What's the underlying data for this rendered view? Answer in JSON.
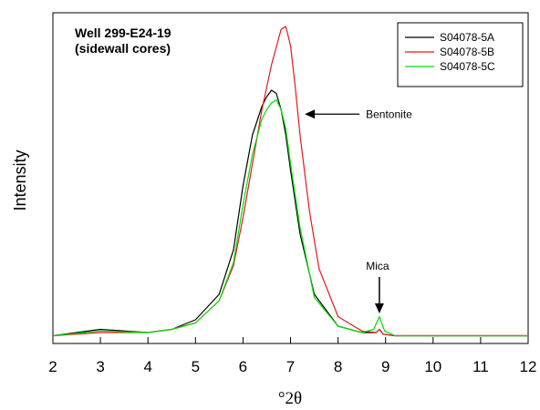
{
  "chart_data": {
    "type": "line",
    "title": "Well 299-E24-19",
    "subtitle": "(sidewall cores)",
    "xlabel": "°2θ",
    "ylabel": "Intensity",
    "xlim": [
      2,
      12
    ],
    "x_ticks": [
      "2",
      "3",
      "4",
      "5",
      "6",
      "7",
      "8",
      "9",
      "10",
      "11",
      "12"
    ],
    "y_ticks_shown": false,
    "grid": false,
    "legend_position": "top-right",
    "series": [
      {
        "name": "S04078-5A",
        "color": "#000000",
        "x": [
          2.0,
          3.0,
          4.0,
          4.5,
          5.0,
          5.5,
          5.8,
          6.0,
          6.2,
          6.4,
          6.5,
          6.6,
          6.7,
          6.8,
          6.9,
          7.0,
          7.2,
          7.5,
          8.0,
          8.5,
          8.8,
          8.87,
          8.95,
          9.2,
          10.0,
          12.0
        ],
        "y": [
          0.01,
          0.03,
          0.02,
          0.03,
          0.06,
          0.14,
          0.28,
          0.48,
          0.64,
          0.73,
          0.76,
          0.78,
          0.77,
          0.72,
          0.64,
          0.53,
          0.33,
          0.14,
          0.04,
          0.02,
          0.02,
          0.03,
          0.015,
          0.01,
          0.01,
          0.01
        ]
      },
      {
        "name": "S04078-5B",
        "color": "#e41a1c",
        "x": [
          2.0,
          3.0,
          4.0,
          4.5,
          5.0,
          5.5,
          5.8,
          6.0,
          6.2,
          6.4,
          6.6,
          6.8,
          6.9,
          7.0,
          7.1,
          7.2,
          7.4,
          7.6,
          8.0,
          8.5,
          8.8,
          8.87,
          8.95,
          9.2,
          10.0,
          12.0
        ],
        "y": [
          0.01,
          0.02,
          0.02,
          0.03,
          0.05,
          0.12,
          0.23,
          0.38,
          0.55,
          0.72,
          0.86,
          0.97,
          0.98,
          0.92,
          0.79,
          0.64,
          0.4,
          0.22,
          0.07,
          0.025,
          0.02,
          0.03,
          0.015,
          0.01,
          0.01,
          0.01
        ]
      },
      {
        "name": "S04078-5C",
        "color": "#00e000",
        "x": [
          2.0,
          3.0,
          4.0,
          4.5,
          5.0,
          5.5,
          5.8,
          6.0,
          6.2,
          6.4,
          6.5,
          6.6,
          6.7,
          6.8,
          6.9,
          7.0,
          7.2,
          7.5,
          8.0,
          8.5,
          8.75,
          8.87,
          8.98,
          9.2,
          10.0,
          12.0
        ],
        "y": [
          0.01,
          0.025,
          0.02,
          0.03,
          0.05,
          0.12,
          0.24,
          0.42,
          0.58,
          0.69,
          0.72,
          0.74,
          0.75,
          0.72,
          0.66,
          0.55,
          0.35,
          0.13,
          0.04,
          0.02,
          0.03,
          0.07,
          0.025,
          0.01,
          0.01,
          0.01
        ]
      }
    ],
    "annotations": [
      {
        "text": "Bentonite",
        "arrow_target_x": 7.3,
        "arrow_target_y": 0.705
      },
      {
        "text": "Mica",
        "arrow_target_x": 8.87,
        "arrow_target_y": 0.08
      }
    ]
  }
}
